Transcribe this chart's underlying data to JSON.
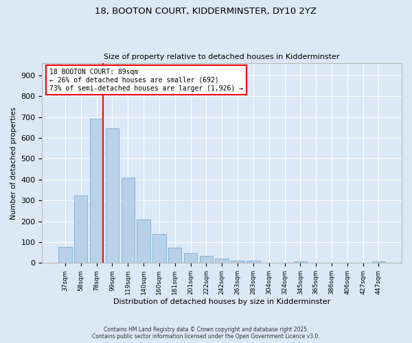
{
  "title_line1": "18, BOOTON COURT, KIDDERMINSTER, DY10 2YZ",
  "title_line2": "Size of property relative to detached houses in Kidderminster",
  "xlabel": "Distribution of detached houses by size in Kidderminster",
  "ylabel": "Number of detached properties",
  "categories": [
    "37sqm",
    "58sqm",
    "78sqm",
    "99sqm",
    "119sqm",
    "140sqm",
    "160sqm",
    "181sqm",
    "201sqm",
    "222sqm",
    "242sqm",
    "263sqm",
    "283sqm",
    "304sqm",
    "324sqm",
    "345sqm",
    "365sqm",
    "386sqm",
    "406sqm",
    "427sqm",
    "447sqm"
  ],
  "values": [
    78,
    323,
    692,
    645,
    410,
    207,
    140,
    75,
    47,
    33,
    22,
    12,
    10,
    0,
    0,
    8,
    0,
    0,
    0,
    0,
    7
  ],
  "bar_color": "#b8d0e8",
  "bar_edge_color": "#7aaed0",
  "vline_color": "red",
  "vline_x_index": 2.5,
  "annotation_text": "18 BOOTON COURT: 89sqm\n← 26% of detached houses are smaller (692)\n73% of semi-detached houses are larger (1,926) →",
  "annotation_box_color": "white",
  "annotation_box_edge": "red",
  "ylim": [
    0,
    960
  ],
  "yticks": [
    0,
    100,
    200,
    300,
    400,
    500,
    600,
    700,
    800,
    900
  ],
  "background_color": "#dce8f5",
  "grid_color": "white",
  "footer_line1": "Contains HM Land Registry data © Crown copyright and database right 2025.",
  "footer_line2": "Contains public sector information licensed under the Open Government Licence v3.0."
}
